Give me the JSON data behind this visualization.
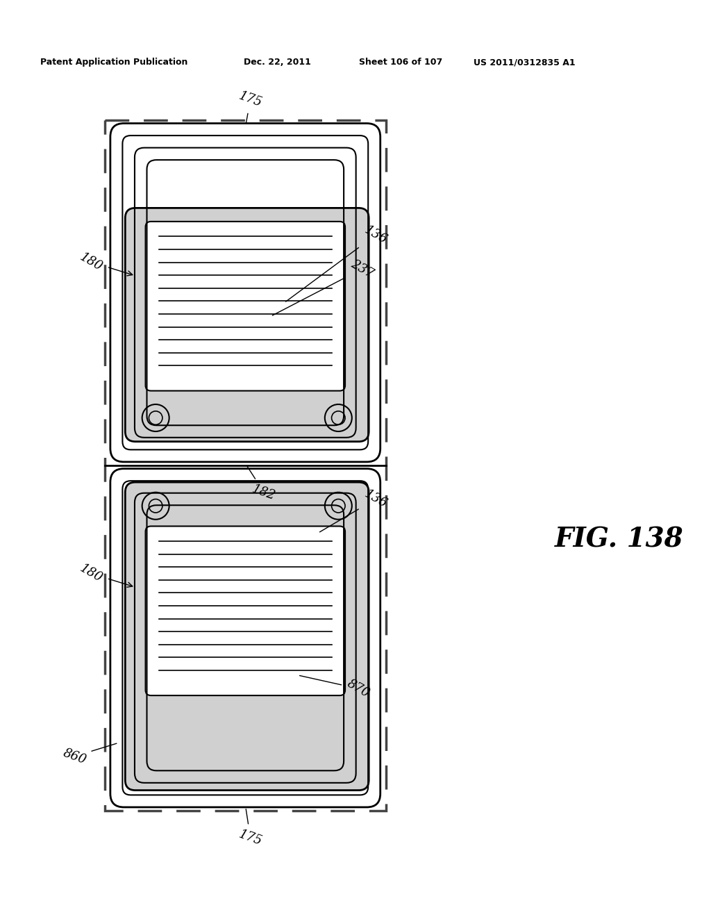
{
  "title_left": "Patent Application Publication",
  "title_middle": "Dec. 22, 2011",
  "title_right1": "Sheet 106 of 107",
  "title_right2": "US 2011/0312835 A1",
  "fig_label": "FIG. 138",
  "labels": {
    "175_top": "175",
    "175_bot": "175",
    "180_top": "180",
    "180_bot": "180",
    "136_top": "136",
    "136_bot": "136",
    "237": "237",
    "182": "182",
    "860": "860",
    "870": "870"
  },
  "bg_color": "#ffffff",
  "line_color": "#000000",
  "dashed_color": "#555555"
}
